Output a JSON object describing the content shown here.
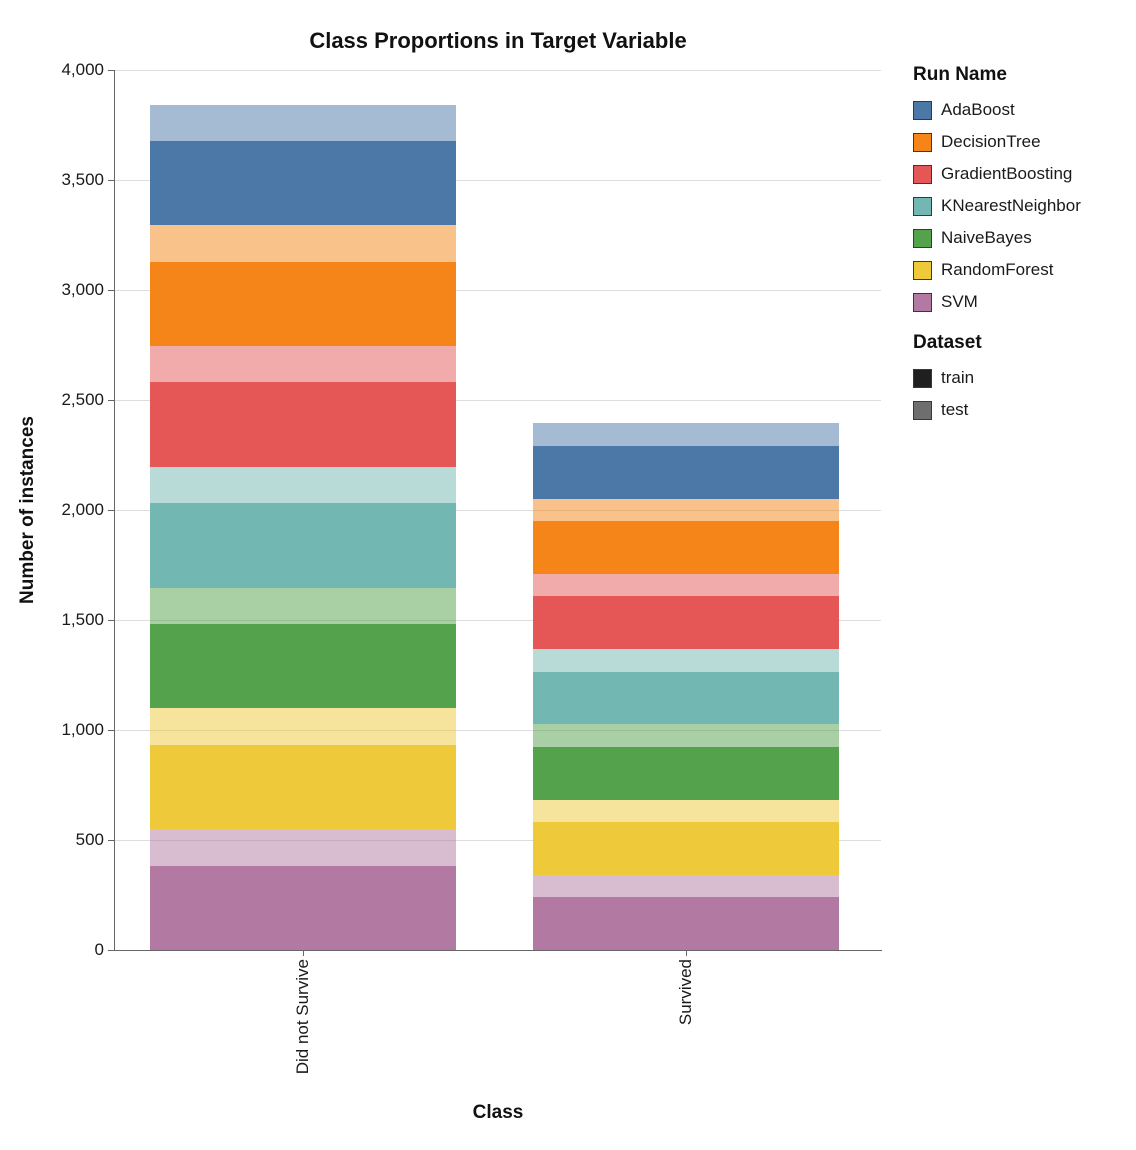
{
  "title": "Class Proportions in Target Variable",
  "y_axis": {
    "title": "Number of instances",
    "ticks": [
      {
        "value": 0,
        "label": "0"
      },
      {
        "value": 500,
        "label": "500"
      },
      {
        "value": 1000,
        "label": "1,000"
      },
      {
        "value": 1500,
        "label": "1,500"
      },
      {
        "value": 2000,
        "label": "2,000"
      },
      {
        "value": 2500,
        "label": "2,500"
      },
      {
        "value": 3000,
        "label": "3,000"
      },
      {
        "value": 3500,
        "label": "3,500"
      },
      {
        "value": 4000,
        "label": "4,000"
      }
    ]
  },
  "x_axis": {
    "title": "Class",
    "categories": [
      "Did not Survive",
      "Survived"
    ]
  },
  "legend": {
    "run_name_title": "Run Name",
    "runs": [
      {
        "name": "AdaBoost",
        "color": "#4c78a8"
      },
      {
        "name": "DecisionTree",
        "color": "#f58518"
      },
      {
        "name": "GradientBoosting",
        "color": "#e45756"
      },
      {
        "name": "KNearestNeighbor",
        "color": "#72b7b2"
      },
      {
        "name": "NaiveBayes",
        "color": "#54a24b"
      },
      {
        "name": "RandomForest",
        "color": "#eeca3b"
      },
      {
        "name": "SVM",
        "color": "#b279a2"
      }
    ],
    "dataset_title": "Dataset",
    "datasets": [
      {
        "name": "train",
        "swatch_color": "#1f1f1f",
        "bar_opacity": 1
      },
      {
        "name": "test",
        "swatch_color": "#6e6e6e",
        "bar_opacity": 0.5
      }
    ]
  },
  "chart_data": {
    "type": "bar",
    "stacked": true,
    "title": "Class Proportions in Target Variable",
    "xlabel": "Class",
    "ylabel": "Number of instances",
    "ylim": [
      0,
      4000
    ],
    "grid": true,
    "legend_position": "right",
    "categories": [
      "Did not Survive",
      "Survived"
    ],
    "stack_order_bottom_to_top": [
      "SVM",
      "RandomForest",
      "NaiveBayes",
      "KNearestNeighbor",
      "GradientBoosting",
      "DecisionTree",
      "AdaBoost"
    ],
    "series": [
      {
        "run": "AdaBoost",
        "dataset": "train",
        "values": [
          384,
          239
        ]
      },
      {
        "run": "AdaBoost",
        "dataset": "test",
        "values": [
          165,
          103
        ]
      },
      {
        "run": "DecisionTree",
        "dataset": "train",
        "values": [
          384,
          239
        ]
      },
      {
        "run": "DecisionTree",
        "dataset": "test",
        "values": [
          165,
          103
        ]
      },
      {
        "run": "GradientBoosting",
        "dataset": "train",
        "values": [
          384,
          239
        ]
      },
      {
        "run": "GradientBoosting",
        "dataset": "test",
        "values": [
          165,
          103
        ]
      },
      {
        "run": "KNearestNeighbor",
        "dataset": "train",
        "values": [
          384,
          239
        ]
      },
      {
        "run": "KNearestNeighbor",
        "dataset": "test",
        "values": [
          165,
          103
        ]
      },
      {
        "run": "NaiveBayes",
        "dataset": "train",
        "values": [
          384,
          239
        ]
      },
      {
        "run": "NaiveBayes",
        "dataset": "test",
        "values": [
          165,
          103
        ]
      },
      {
        "run": "RandomForest",
        "dataset": "train",
        "values": [
          384,
          239
        ]
      },
      {
        "run": "RandomForest",
        "dataset": "test",
        "values": [
          165,
          103
        ]
      },
      {
        "run": "SVM",
        "dataset": "train",
        "values": [
          384,
          239
        ]
      },
      {
        "run": "SVM",
        "dataset": "test",
        "values": [
          165,
          103
        ]
      }
    ]
  }
}
